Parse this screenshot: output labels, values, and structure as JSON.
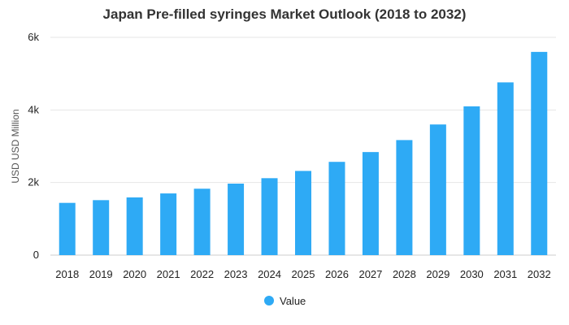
{
  "chart_data": {
    "type": "bar",
    "title": "Japan Pre-filled syringes Market Outlook (2018 to 2032)",
    "xlabel": "",
    "ylabel": "USD USD Million",
    "categories": [
      "2018",
      "2019",
      "2020",
      "2021",
      "2022",
      "2023",
      "2024",
      "2025",
      "2026",
      "2027",
      "2028",
      "2029",
      "2030",
      "2031",
      "2032"
    ],
    "series": [
      {
        "name": "Value",
        "color": "#2eaaf5",
        "values": [
          1440,
          1515,
          1590,
          1700,
          1830,
          1970,
          2120,
          2320,
          2570,
          2840,
          3170,
          3600,
          4100,
          4760,
          5600
        ]
      }
    ],
    "ylim": [
      0,
      6000
    ],
    "yticks": [
      0,
      2000,
      4000,
      6000
    ],
    "ytick_labels": [
      "0",
      "2k",
      "4k",
      "6k"
    ],
    "grid": true,
    "legend_position": "bottom"
  }
}
